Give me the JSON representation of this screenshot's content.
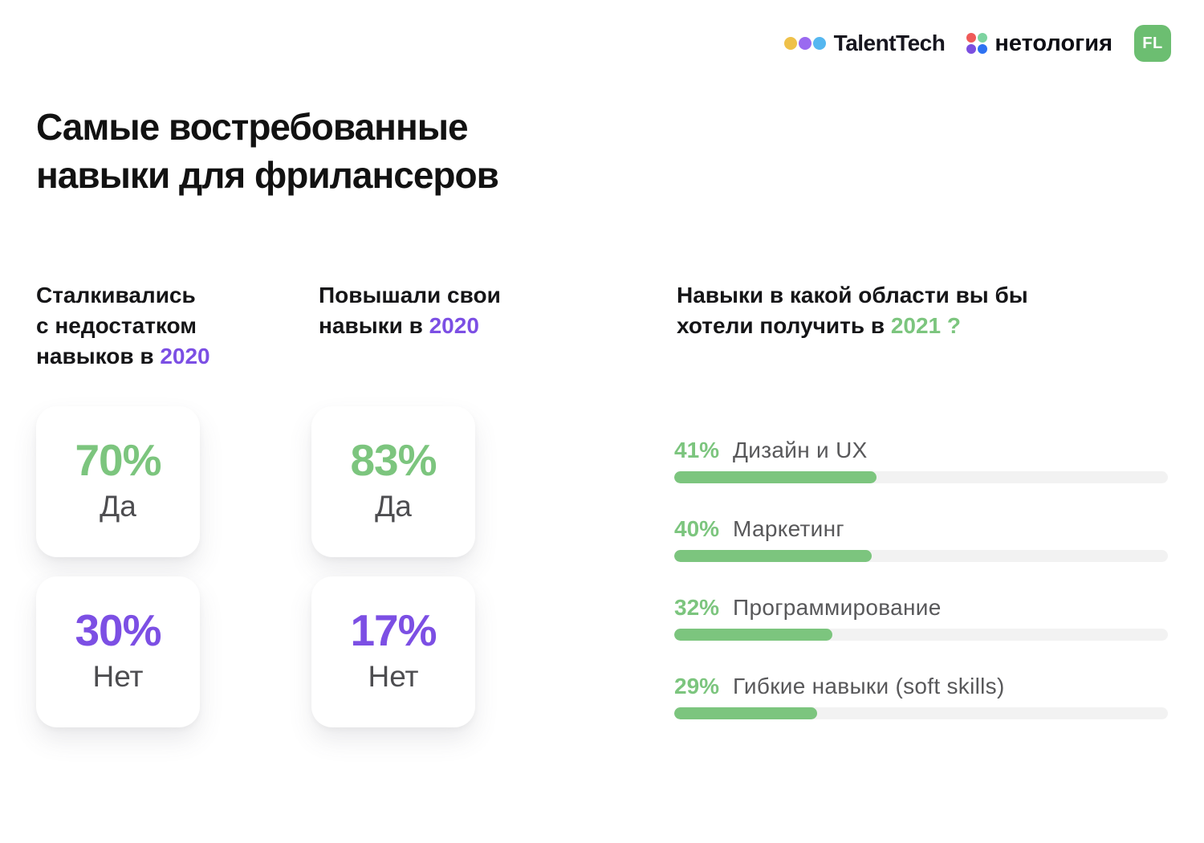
{
  "header": {
    "talenttech": {
      "label": "TalentTech",
      "dot_colors": [
        "#EFC14A",
        "#9A6AF0",
        "#55B7F0"
      ]
    },
    "netology": {
      "label": "нетология",
      "dot_colors": [
        "#EF5A58",
        "#7DD3A0",
        "#7B4FE0",
        "#2E72F2"
      ]
    },
    "fl_badge": {
      "label": "FL",
      "bg": "#6CBE71"
    }
  },
  "title": {
    "text": "Самые востребованные\nнавыки для фрилансеров"
  },
  "stats": [
    {
      "heading_text": "Сталкивались\nс недостатком\nнавыков в ",
      "heading_year": "2020",
      "cards": [
        {
          "value": "70%",
          "label": "Да",
          "accent": "green"
        },
        {
          "value": "30%",
          "label": "Нет",
          "accent": "purple"
        }
      ]
    },
    {
      "heading_text": "Повышали свои\nнавыки в ",
      "heading_year": "2020",
      "cards": [
        {
          "value": "83%",
          "label": "Да",
          "accent": "green"
        },
        {
          "value": "17%",
          "label": "Нет",
          "accent": "purple"
        }
      ]
    }
  ],
  "skills": {
    "heading_text": "Навыки в какой области вы бы\nхотели получить в ",
    "heading_year": "2021 ?",
    "items": [
      {
        "percent": 41,
        "percent_label": "41%",
        "label": "Дизайн и UX"
      },
      {
        "percent": 40,
        "percent_label": "40%",
        "label": "Маркетинг"
      },
      {
        "percent": 32,
        "percent_label": "32%",
        "label": "Программирование"
      },
      {
        "percent": 29,
        "percent_label": "29%",
        "label": "Гибкие навыки (soft skills)"
      }
    ]
  },
  "theme": {
    "green": "#7CC57E",
    "purple": "#7C4FE4",
    "badge_green": "#6CBE71",
    "track": "#F2F2F2",
    "tt_yellow": "#EFC14A",
    "tt_purple": "#9A6AF0",
    "tt_blue": "#55B7F0",
    "net_red": "#EF5A58",
    "net_green": "#7DD3A0",
    "net_purple": "#7B4FE0",
    "net_blue": "#2E72F2"
  },
  "chart_data": [
    {
      "type": "bar",
      "title": "Сталкивались с недостатком навыков в 2020",
      "categories": [
        "Да",
        "Нет"
      ],
      "values": [
        70,
        30
      ],
      "unit": "%"
    },
    {
      "type": "bar",
      "title": "Повышали свои навыки в 2020",
      "categories": [
        "Да",
        "Нет"
      ],
      "values": [
        83,
        17
      ],
      "unit": "%"
    },
    {
      "type": "bar",
      "orientation": "horizontal",
      "title": "Навыки в какой области вы бы хотели получить в 2021 ?",
      "categories": [
        "Дизайн и UX",
        "Маркетинг",
        "Программирование",
        "Гибкие навыки (soft skills)"
      ],
      "values": [
        41,
        40,
        32,
        29
      ],
      "unit": "%",
      "xlim": [
        0,
        100
      ],
      "grid": false,
      "legend": false
    }
  ]
}
